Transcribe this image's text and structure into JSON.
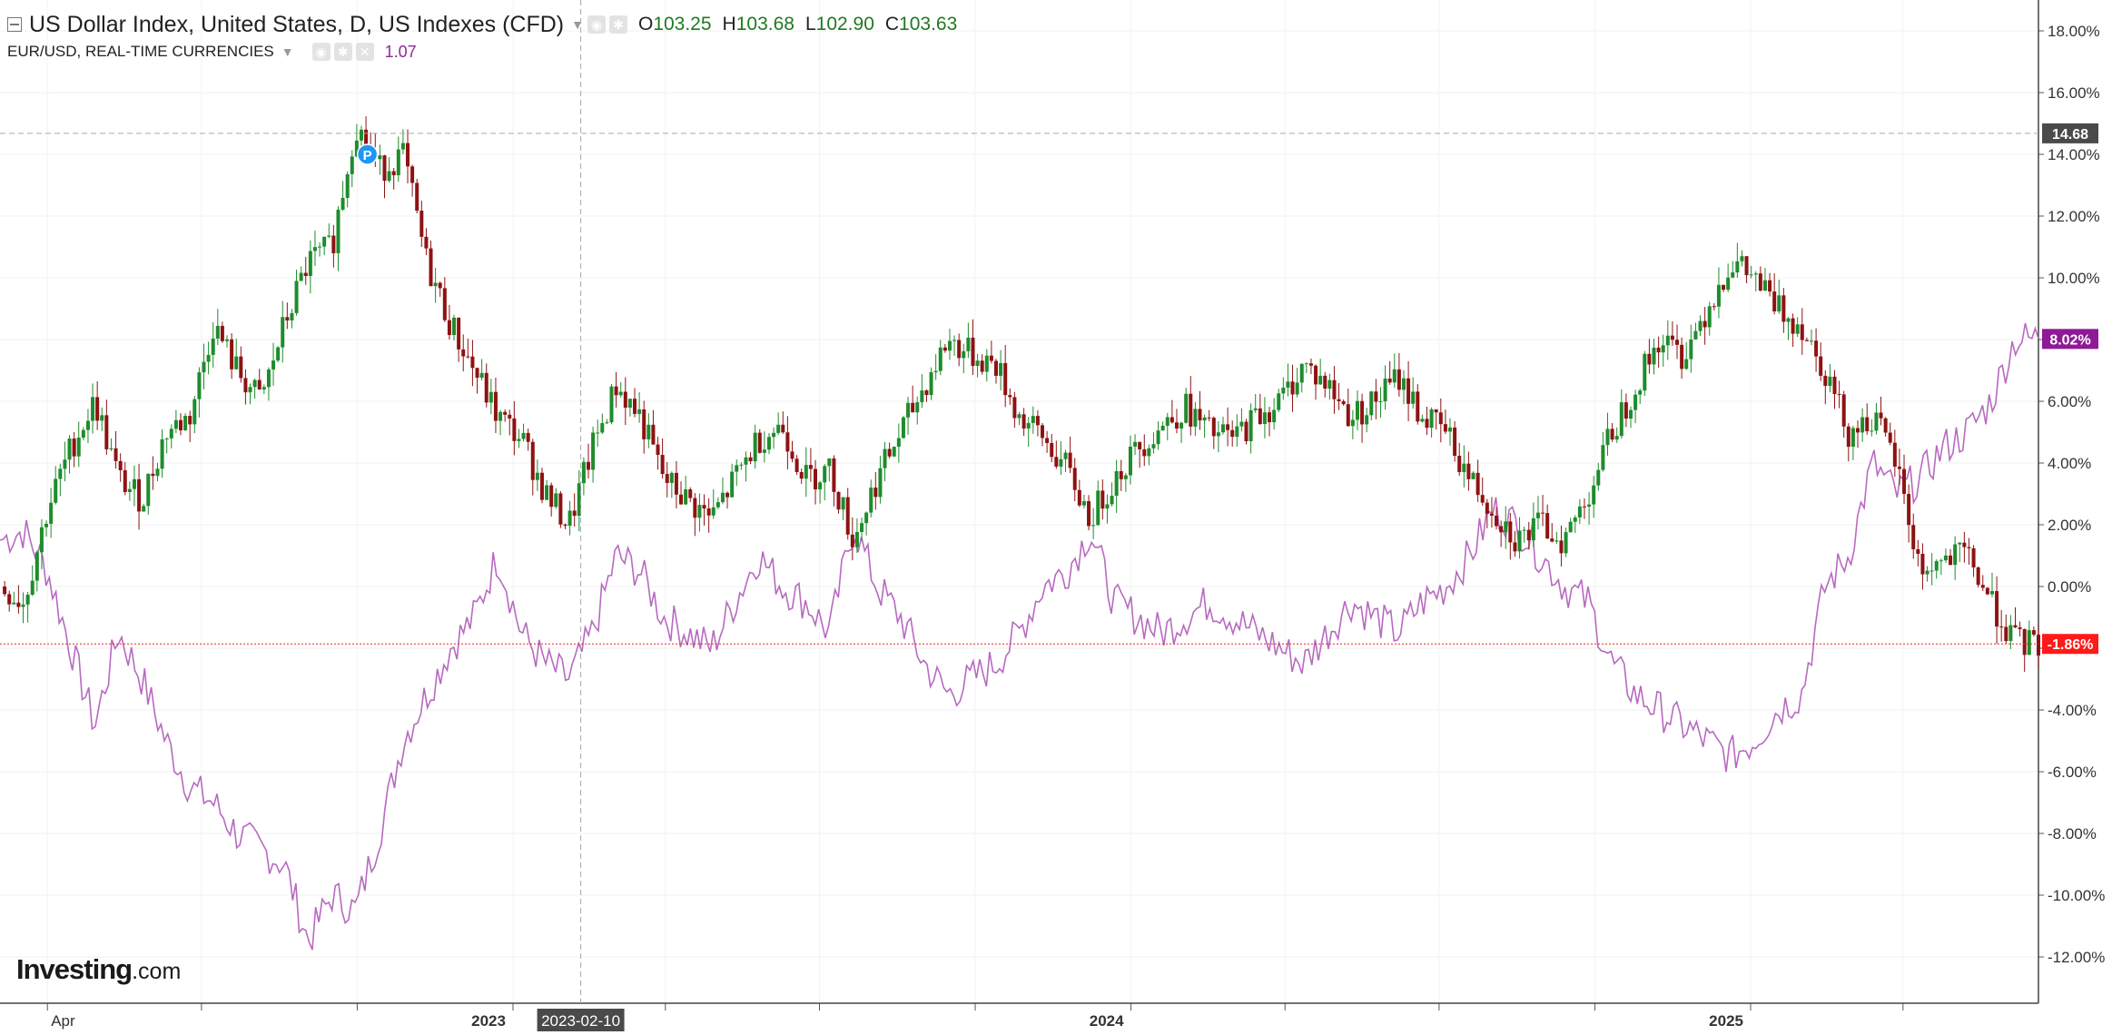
{
  "header": {
    "main_title": "US Dollar Index, United States, D, US Indexes (CFD)",
    "ohlc": [
      {
        "label": "O",
        "value": "103.25"
      },
      {
        "label": "H",
        "value": "103.68"
      },
      {
        "label": "L",
        "value": "102.90"
      },
      {
        "label": "C",
        "value": "103.63"
      }
    ],
    "secondary_title": "EUR/USD, REAL-TIME CURRENCIES",
    "secondary_value": "1.07"
  },
  "logo": {
    "brand": "Investing",
    "suffix": ".com"
  },
  "colors": {
    "up": "#1e8c2c",
    "down": "#8e1212",
    "eurusd_line": "#b76ac0",
    "current_price_line": "#e8252a",
    "badge_eurusd": "#8e1a97",
    "badge_current": "#ff1a1a",
    "badge_crosshair": "#4a4a4a"
  },
  "chart_data": {
    "type": "line",
    "title": "US Dollar Index, United States, D, US Indexes (CFD)",
    "y_unit": "%",
    "ylim": [
      -13.5,
      19
    ],
    "y_ticks": [
      {
        "value": 18,
        "label": "18.00%"
      },
      {
        "value": 16,
        "label": "16.00%"
      },
      {
        "value": 14,
        "label": "14.00%"
      },
      {
        "value": 12,
        "label": "12.00%"
      },
      {
        "value": 10,
        "label": "10.00%"
      },
      {
        "value": 8,
        "label": "8.00%"
      },
      {
        "value": 6,
        "label": "6.00%"
      },
      {
        "value": 4,
        "label": "4.00%"
      },
      {
        "value": 2,
        "label": "2.00%"
      },
      {
        "value": 0,
        "label": "0.00%"
      },
      {
        "value": -2,
        "label": "-2.00%"
      },
      {
        "value": -4,
        "label": "-4.00%"
      },
      {
        "value": -6,
        "label": "-6.00%"
      },
      {
        "value": -8,
        "label": "-8.00%"
      },
      {
        "value": -10,
        "label": "-10.00%"
      },
      {
        "value": -12,
        "label": "-12.00%"
      }
    ],
    "xlim": [
      "2022-03-04",
      "2025-06-20"
    ],
    "x_labels": [
      {
        "date": "2022-04-01",
        "label": "Apr"
      },
      {
        "date": "2023-01-01",
        "label": "2023",
        "bold": true
      },
      {
        "date": "2024-01-01",
        "label": "2024",
        "bold": true
      },
      {
        "date": "2025-01-01",
        "label": "2025",
        "bold": true
      }
    ],
    "x_minor_ticks": [
      "2022-07-01",
      "2022-10-01",
      "2023-04-01",
      "2023-07-01",
      "2023-10-01",
      "2024-04-01",
      "2024-07-01",
      "2024-10-01",
      "2025-04-01"
    ],
    "grid": true,
    "series": [
      {
        "name": "US Dollar Index",
        "style": "candlestick",
        "dates": [
          "2022-03-04",
          "2022-03-18",
          "2022-04-01",
          "2022-04-15",
          "2022-04-29",
          "2022-05-13",
          "2022-05-27",
          "2022-06-10",
          "2022-06-24",
          "2022-07-08",
          "2022-07-22",
          "2022-08-05",
          "2022-08-19",
          "2022-09-02",
          "2022-09-16",
          "2022-09-30",
          "2022-10-14",
          "2022-10-28",
          "2022-11-11",
          "2022-11-25",
          "2022-12-09",
          "2022-12-23",
          "2023-01-06",
          "2023-01-20",
          "2023-02-03",
          "2023-02-17",
          "2023-03-03",
          "2023-03-17",
          "2023-03-31",
          "2023-04-14",
          "2023-04-28",
          "2023-05-12",
          "2023-05-26",
          "2023-06-09",
          "2023-06-23",
          "2023-07-07",
          "2023-07-21",
          "2023-08-04",
          "2023-08-18",
          "2023-09-01",
          "2023-09-15",
          "2023-09-29",
          "2023-10-13",
          "2023-10-27",
          "2023-11-10",
          "2023-11-24",
          "2023-12-08",
          "2023-12-22",
          "2024-01-05",
          "2024-01-19",
          "2024-02-02",
          "2024-02-16",
          "2024-03-01",
          "2024-03-15",
          "2024-03-29",
          "2024-04-12",
          "2024-04-26",
          "2024-05-10",
          "2024-05-24",
          "2024-06-07",
          "2024-06-21",
          "2024-07-05",
          "2024-07-19",
          "2024-08-02",
          "2024-08-16",
          "2024-08-30",
          "2024-09-13",
          "2024-09-27",
          "2024-10-11",
          "2024-10-25",
          "2024-11-08",
          "2024-11-22",
          "2024-12-06",
          "2024-12-20",
          "2025-01-03",
          "2025-01-17",
          "2025-01-31",
          "2025-02-14",
          "2025-02-28",
          "2025-03-14",
          "2025-03-28",
          "2025-04-11",
          "2025-04-25",
          "2025-05-09",
          "2025-05-23",
          "2025-06-06",
          "2025-06-20"
        ],
        "values": [
          0.0,
          -0.5,
          2.5,
          4.5,
          6.0,
          3.5,
          2.8,
          5.0,
          5.5,
          8.5,
          7.0,
          6.0,
          8.5,
          10.5,
          11.0,
          15.0,
          13.5,
          14.0,
          10.5,
          8.5,
          7.0,
          5.5,
          4.8,
          3.0,
          2.0,
          4.5,
          6.5,
          5.5,
          3.5,
          2.8,
          2.2,
          3.5,
          4.8,
          5.2,
          3.5,
          3.8,
          1.5,
          3.5,
          5.0,
          6.5,
          8.0,
          7.5,
          7.2,
          5.5,
          4.8,
          3.8,
          2.2,
          3.5,
          4.5,
          5.2,
          5.8,
          5.0,
          4.8,
          5.5,
          6.0,
          7.2,
          6.5,
          5.5,
          6.0,
          6.8,
          5.5,
          5.0,
          3.5,
          2.5,
          1.5,
          2.0,
          1.5,
          3.0,
          5.0,
          6.5,
          8.0,
          7.5,
          9.0,
          10.5,
          10.0,
          9.0,
          8.5,
          7.0,
          5.0,
          5.5,
          4.0,
          0.5,
          0.8,
          1.0,
          -0.5,
          -1.8,
          -1.86
        ]
      },
      {
        "name": "EUR/USD",
        "style": "line",
        "dates": [
          "2022-03-04",
          "2022-03-18",
          "2022-04-01",
          "2022-04-15",
          "2022-04-29",
          "2022-05-13",
          "2022-05-27",
          "2022-06-10",
          "2022-06-24",
          "2022-07-08",
          "2022-07-22",
          "2022-08-05",
          "2022-08-19",
          "2022-09-02",
          "2022-09-16",
          "2022-09-30",
          "2022-10-14",
          "2022-10-28",
          "2022-11-11",
          "2022-11-25",
          "2022-12-09",
          "2022-12-23",
          "2023-01-06",
          "2023-01-20",
          "2023-02-03",
          "2023-02-17",
          "2023-03-03",
          "2023-03-17",
          "2023-03-31",
          "2023-04-14",
          "2023-04-28",
          "2023-05-12",
          "2023-05-26",
          "2023-06-09",
          "2023-06-23",
          "2023-07-07",
          "2023-07-21",
          "2023-08-04",
          "2023-08-18",
          "2023-09-01",
          "2023-09-15",
          "2023-09-29",
          "2023-10-13",
          "2023-10-27",
          "2023-11-10",
          "2023-11-24",
          "2023-12-08",
          "2023-12-22",
          "2024-01-05",
          "2024-01-19",
          "2024-02-02",
          "2024-02-16",
          "2024-03-01",
          "2024-03-15",
          "2024-03-29",
          "2024-04-12",
          "2024-04-26",
          "2024-05-10",
          "2024-05-24",
          "2024-06-07",
          "2024-06-21",
          "2024-07-05",
          "2024-07-19",
          "2024-08-02",
          "2024-08-16",
          "2024-08-30",
          "2024-09-13",
          "2024-09-27",
          "2024-10-11",
          "2024-10-25",
          "2024-11-08",
          "2024-11-22",
          "2024-12-06",
          "2024-12-20",
          "2025-01-03",
          "2025-01-17",
          "2025-01-31",
          "2025-02-14",
          "2025-02-28",
          "2025-03-14",
          "2025-03-28",
          "2025-04-11",
          "2025-04-25",
          "2025-05-09",
          "2025-05-23",
          "2025-06-06",
          "2025-06-20"
        ],
        "values": [
          1.5,
          1.8,
          0.5,
          -2.0,
          -4.5,
          -1.5,
          -3.0,
          -5.0,
          -6.5,
          -7.0,
          -8.0,
          -8.5,
          -9.0,
          -11.5,
          -10.0,
          -10.5,
          -8.0,
          -5.0,
          -3.5,
          -2.0,
          -1.0,
          1.0,
          -1.5,
          -2.5,
          -3.0,
          -1.5,
          1.0,
          0.5,
          -1.0,
          -1.5,
          -2.0,
          -0.5,
          1.0,
          0.0,
          -0.5,
          -1.5,
          2.0,
          0.0,
          -1.0,
          -2.5,
          -3.5,
          -3.0,
          -2.5,
          -1.5,
          0.0,
          0.5,
          1.8,
          -0.5,
          -1.0,
          -1.5,
          -1.0,
          -0.5,
          -1.0,
          -1.5,
          -2.0,
          -2.5,
          -1.5,
          -0.5,
          -1.0,
          -1.5,
          -0.5,
          0.0,
          1.0,
          2.5,
          2.0,
          1.0,
          0.0,
          -0.5,
          -2.5,
          -3.5,
          -4.0,
          -4.5,
          -5.0,
          -5.5,
          -5.0,
          -4.0,
          -3.5,
          0.0,
          1.0,
          4.0,
          3.0,
          3.5,
          4.5,
          5.0,
          6.0,
          8.0,
          8.02
        ]
      }
    ],
    "price_lines": [
      {
        "value": 14.68,
        "label": "14.68",
        "style": "dashed",
        "badge": "crosshair"
      },
      {
        "value": -1.86,
        "label": "-1.86%",
        "style": "dotted",
        "badge": "current"
      }
    ],
    "last_values": [
      {
        "series": "EUR/USD",
        "value": 8.02,
        "label": "8.02%"
      }
    ],
    "crosshair": {
      "date": "2023-02-10",
      "label": "2023-02-10"
    },
    "marker": {
      "date": "2022-10-07",
      "value": 14.0,
      "label": "P"
    }
  }
}
